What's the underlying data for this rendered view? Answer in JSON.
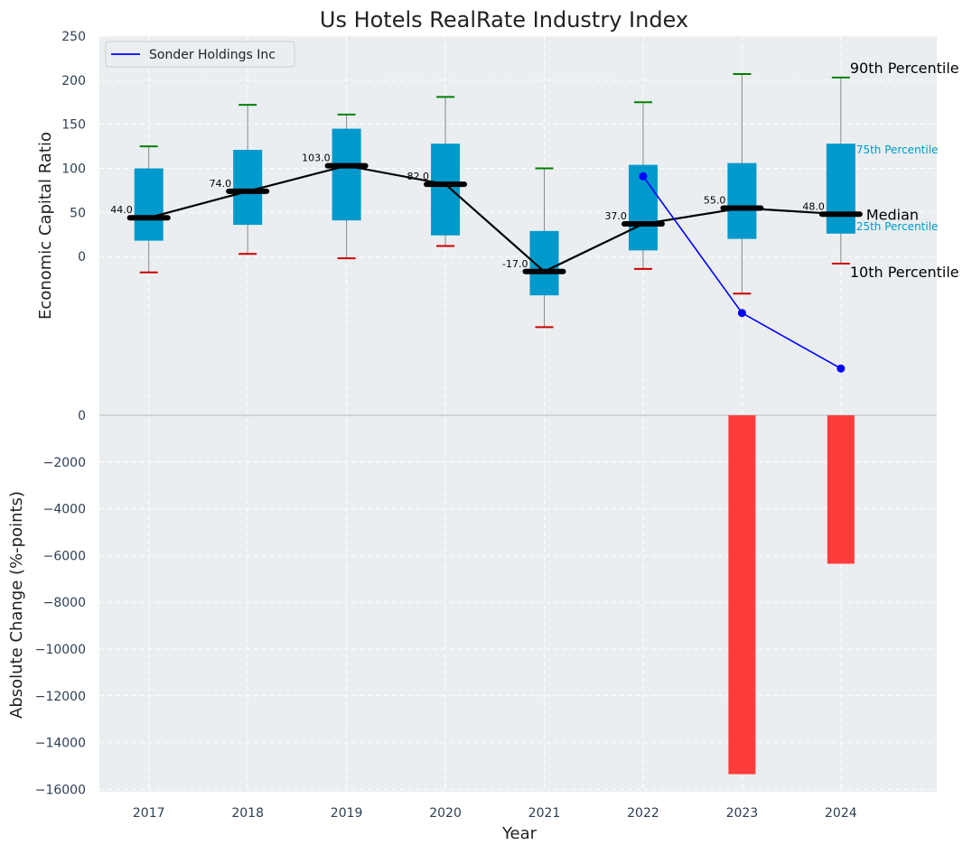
{
  "chart_data": [
    {
      "type": "box",
      "title": "Us Hotels RealRate Industry Index",
      "ylabel": "Economic Capital Ratio",
      "ylim": [
        -180,
        250
      ],
      "yticks": [
        0,
        50,
        100,
        150,
        200,
        250
      ],
      "grid": true,
      "legend": {
        "position": "top-left",
        "entries": [
          "Sonder Holdings Inc"
        ]
      },
      "years": [
        "2017",
        "2018",
        "2019",
        "2020",
        "2021",
        "2022",
        "2023",
        "2024"
      ],
      "p10": [
        -18,
        3,
        -2,
        12,
        -80,
        -14,
        -42,
        -8
      ],
      "q1": [
        18,
        36,
        41,
        24,
        -44,
        7,
        20,
        26
      ],
      "median": [
        44,
        74,
        103,
        82,
        -17,
        37,
        55,
        48
      ],
      "q3": [
        100,
        121,
        145,
        128,
        29,
        104,
        106,
        128
      ],
      "p90": [
        125,
        172,
        161,
        181,
        100,
        175,
        207,
        203
      ],
      "median_labels": [
        "44.0",
        "74.0",
        "103.0",
        "82.0",
        "-17.0",
        "37.0",
        "55.0",
        "48.0"
      ],
      "company": {
        "name": "Sonder Holdings Inc",
        "years": [
          "2022",
          "2023",
          "2024"
        ],
        "values": [
          91,
          -64,
          -127
        ]
      },
      "annotations": {
        "p90": "90th Percentile",
        "q3": "75th Percentile",
        "median": "Median",
        "q1": "25th Percentile",
        "p10": "10th Percentile"
      },
      "colors": {
        "box": "#0099cc",
        "median_line": "#000000",
        "company": "#0000ff",
        "p90_cap": "#008000",
        "p10_cap": "#cc0000",
        "whisker": "#888888",
        "percentile_text": "#0099cc",
        "bg": "#eaeef0"
      }
    },
    {
      "type": "bar",
      "ylabel": "Absolute Change (%-points)",
      "xlabel": "Year",
      "categories": [
        "2023",
        "2024"
      ],
      "values": [
        -15350,
        -6350
      ],
      "ylim": [
        -16100,
        0
      ],
      "yticks": [
        0,
        -2000,
        -4000,
        -6000,
        -8000,
        -10000,
        -12000,
        -14000,
        -16000
      ],
      "xticks": [
        "2017",
        "2018",
        "2019",
        "2020",
        "2021",
        "2022",
        "2023",
        "2024"
      ],
      "colors": {
        "bar": "#ff3c3c"
      }
    }
  ]
}
